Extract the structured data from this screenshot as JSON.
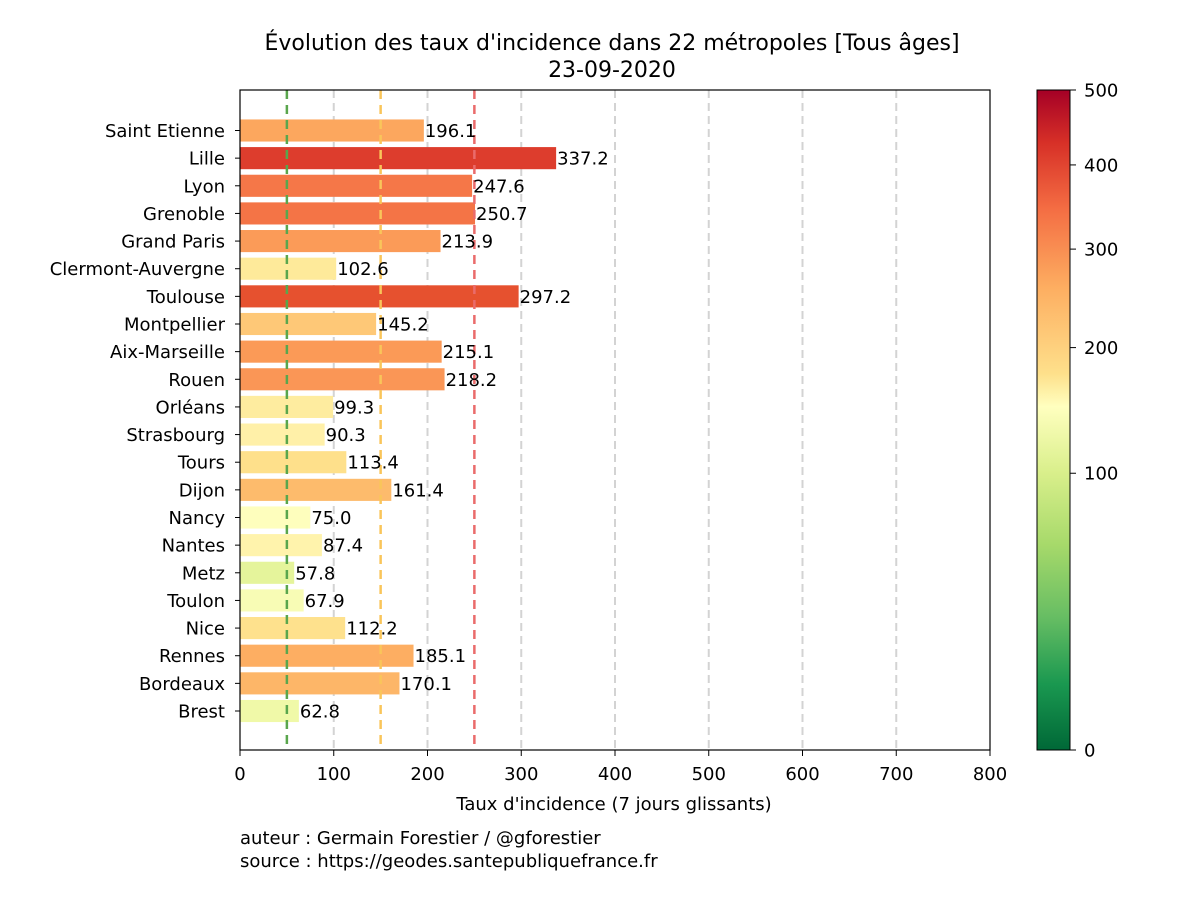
{
  "chart_data": {
    "type": "bar",
    "orientation": "horizontal",
    "title": "Évolution des taux d'incidence dans 22 métropoles [Tous âges]",
    "subtitle": "23-09-2020",
    "xlabel": "Taux d'incidence (7 jours glissants)",
    "ylabel": "",
    "xlim": [
      0,
      800
    ],
    "x_ticks": [
      0,
      100,
      200,
      300,
      400,
      500,
      600,
      700,
      800
    ],
    "categories": [
      "Saint Etienne",
      "Lille",
      "Lyon",
      "Grenoble",
      "Grand Paris",
      "Clermont-Auvergne",
      "Toulouse",
      "Montpellier",
      "Aix-Marseille",
      "Rouen",
      "Orléans",
      "Strasbourg",
      "Tours",
      "Dijon",
      "Nancy",
      "Nantes",
      "Metz",
      "Toulon",
      "Nice",
      "Rennes",
      "Bordeaux",
      "Brest"
    ],
    "values": [
      196.1,
      337.2,
      247.6,
      250.7,
      213.9,
      102.6,
      297.2,
      145.2,
      215.1,
      218.2,
      99.3,
      90.3,
      113.4,
      161.4,
      75.0,
      87.4,
      57.8,
      67.9,
      112.2,
      185.1,
      170.1,
      62.8
    ],
    "value_labels": [
      "196.1",
      "337.2",
      "247.6",
      "250.7",
      "213.9",
      "102.6",
      "297.2",
      "145.2",
      "215.1",
      "218.2",
      "99.3",
      "90.3",
      "113.4",
      "161.4",
      "75.0",
      "87.4",
      "57.8",
      "67.9",
      "112.2",
      "185.1",
      "170.1",
      "62.8"
    ],
    "bar_colors": [
      "#fca75e",
      "#dd3d2d",
      "#f57748",
      "#f47446",
      "#fb9b58",
      "#feea9a",
      "#e6512f",
      "#fec877",
      "#fb9a57",
      "#fa9656",
      "#feec9f",
      "#fff0a8",
      "#fee08b",
      "#fdbb6c",
      "#fefebd",
      "#fff3ac",
      "#e5f49b",
      "#f8fcb5",
      "#fee18d",
      "#fdae62",
      "#fdb668",
      "#f0f9a8"
    ],
    "reference_lines": [
      {
        "value": 50,
        "color": "#5aa64d",
        "style": "dashed"
      },
      {
        "value": 150,
        "color": "#f9c55a",
        "style": "dashed"
      },
      {
        "value": 250,
        "color": "#ea6b6b",
        "style": "dashed"
      }
    ],
    "grid": {
      "x": true,
      "y": false,
      "style": "dashed",
      "color": "#d3d3d3"
    },
    "colorbar": {
      "ticks": [
        0,
        100,
        200,
        300,
        400,
        500
      ],
      "tick_labels": [
        "0",
        "100",
        "200",
        "300",
        "400",
        "500"
      ],
      "scale": "nonlinear",
      "colormap": "RdYlGn_r"
    }
  },
  "credits": {
    "author": "auteur : Germain Forestier / @gforestier",
    "source": "source : https://geodes.santepubliquefrance.fr"
  }
}
